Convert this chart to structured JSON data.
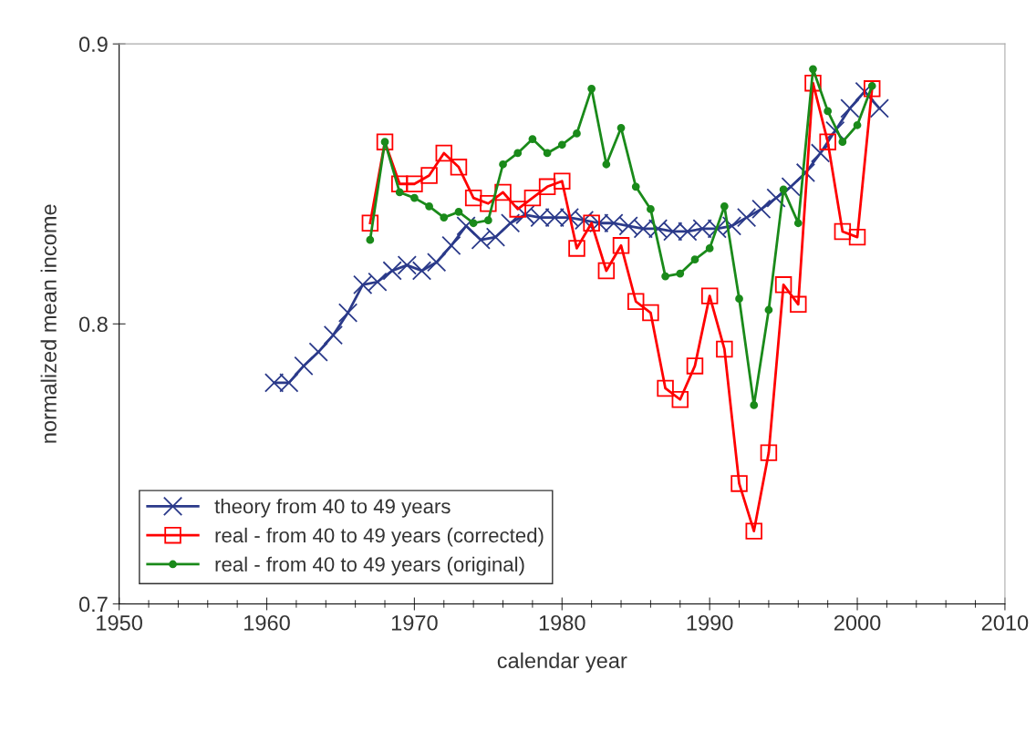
{
  "chart_data": {
    "type": "line",
    "xlabel": "calendar year",
    "ylabel": "normalized mean income",
    "xlim": [
      1950,
      2010
    ],
    "xticks": [
      1950,
      1960,
      1970,
      1980,
      1990,
      2000,
      2010
    ],
    "ylim": [
      0.7,
      0.9
    ],
    "yticks": [
      0.7,
      0.8,
      0.9
    ],
    "grid": false,
    "legend": "bottom left",
    "series": [
      {
        "name": "theory from 40 to 49 years",
        "color": "#2b3a8a",
        "marker": "cross",
        "x": [
          1960.5,
          1961.5,
          1962.5,
          1963.5,
          1964.5,
          1965.5,
          1966.5,
          1967.5,
          1968.5,
          1969.5,
          1970.5,
          1971.5,
          1972.5,
          1973.5,
          1974.5,
          1975.5,
          1976.5,
          1977.5,
          1978.5,
          1979.5,
          1980.5,
          1981.5,
          1982.5,
          1983.5,
          1984.5,
          1985.5,
          1986.5,
          1987.5,
          1988.5,
          1989.5,
          1990.5,
          1991.5,
          1992.5,
          1993.5,
          1994.5,
          1995.5,
          1996.5,
          1997.5,
          1998.5,
          1999.5,
          2000.5,
          2001.5
        ],
        "values": [
          0.779,
          0.779,
          0.785,
          0.79,
          0.796,
          0.804,
          0.814,
          0.815,
          0.819,
          0.821,
          0.819,
          0.822,
          0.828,
          0.835,
          0.83,
          0.831,
          0.836,
          0.839,
          0.838,
          0.838,
          0.838,
          0.837,
          0.836,
          0.836,
          0.835,
          0.834,
          0.834,
          0.833,
          0.833,
          0.834,
          0.834,
          0.835,
          0.838,
          0.841,
          0.845,
          0.849,
          0.854,
          0.861,
          0.869,
          0.877,
          0.883,
          0.877
        ]
      },
      {
        "name": "real - from 40 to 49 years (corrected)",
        "color": "#ff0000",
        "marker": "square",
        "x": [
          1967,
          1968,
          1969,
          1970,
          1971,
          1972,
          1973,
          1974,
          1975,
          1976,
          1977,
          1978,
          1979,
          1980,
          1981,
          1982,
          1983,
          1984,
          1985,
          1986,
          1987,
          1988,
          1989,
          1990,
          1991,
          1992,
          1993,
          1994,
          1995,
          1996,
          1997,
          1998,
          1999,
          2000,
          2001
        ],
        "values": [
          0.836,
          0.865,
          0.85,
          0.85,
          0.853,
          0.861,
          0.856,
          0.845,
          0.843,
          0.847,
          0.841,
          0.845,
          0.849,
          0.851,
          0.827,
          0.836,
          0.819,
          0.828,
          0.808,
          0.804,
          0.777,
          0.773,
          0.785,
          0.81,
          0.791,
          0.743,
          0.726,
          0.754,
          0.814,
          0.807,
          0.886,
          0.865,
          0.833,
          0.831,
          0.884
        ]
      },
      {
        "name": "real - from 40 to 49 years (original)",
        "color": "#1a8a1a",
        "marker": "circle",
        "x": [
          1967,
          1968,
          1969,
          1970,
          1971,
          1972,
          1973,
          1974,
          1975,
          1976,
          1977,
          1978,
          1979,
          1980,
          1981,
          1982,
          1983,
          1984,
          1985,
          1986,
          1987,
          1988,
          1989,
          1990,
          1991,
          1992,
          1993,
          1994,
          1995,
          1996,
          1997,
          1998,
          1999,
          2000,
          2001
        ],
        "values": [
          0.83,
          0.865,
          0.847,
          0.845,
          0.842,
          0.838,
          0.84,
          0.836,
          0.837,
          0.857,
          0.861,
          0.866,
          0.861,
          0.864,
          0.868,
          0.884,
          0.857,
          0.87,
          0.849,
          0.841,
          0.817,
          0.818,
          0.823,
          0.827,
          0.842,
          0.809,
          0.771,
          0.805,
          0.848,
          0.836,
          0.891,
          0.876,
          0.865,
          0.871,
          0.885
        ]
      }
    ]
  }
}
